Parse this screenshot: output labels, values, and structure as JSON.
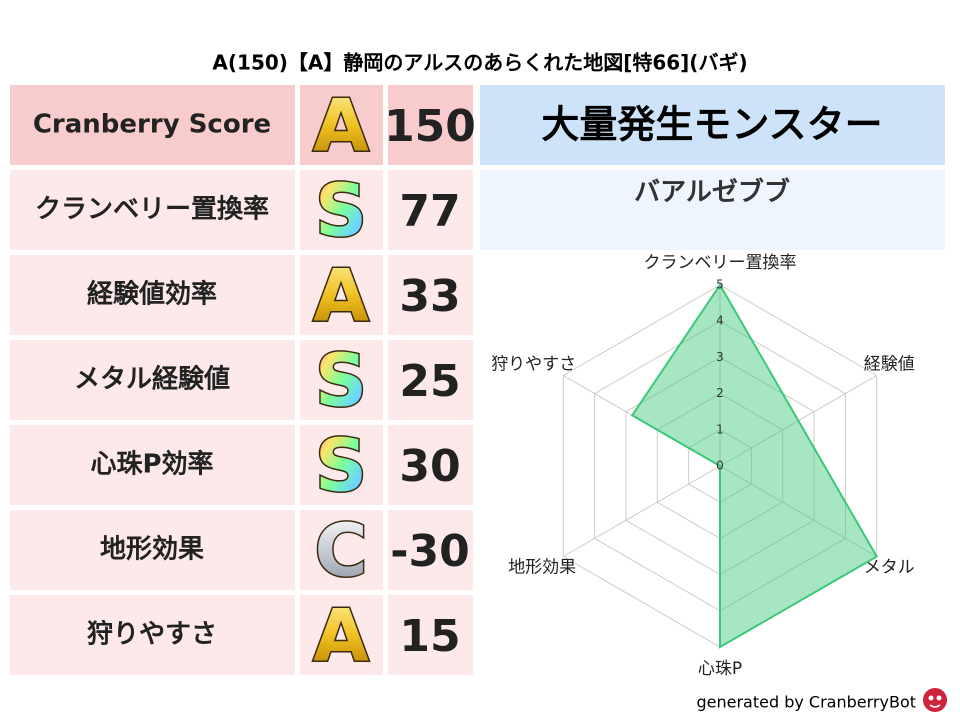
{
  "title": "A(150)【A】静岡のアルスのあらくれた地図[特66](バギ)",
  "table": {
    "rows": [
      [
        "Cranberry Score",
        "A",
        150
      ],
      [
        "クランベリー置換率",
        "S",
        77
      ],
      [
        "経験値効率",
        "A",
        33
      ],
      [
        "メタル経験値",
        "S",
        25
      ],
      [
        "心珠P効率",
        "S",
        30
      ],
      [
        "地形効果",
        "C",
        -30
      ],
      [
        "狩りやすさ",
        "A",
        15
      ]
    ]
  },
  "monster": {
    "header": "大量発生モンスター",
    "name": "バアルゼブブ"
  },
  "chart_data": {
    "type": "radar",
    "axes": [
      "クランベリー置換率",
      "経験値",
      "メタル",
      "心珠P",
      "地形効果",
      "狩りやすさ"
    ],
    "values": [
      5,
      2.5,
      5,
      5,
      0,
      2.8
    ],
    "color": "#3cc878",
    "rlim": [
      0,
      5
    ],
    "rticks": [
      0,
      1,
      2,
      3,
      4,
      5
    ],
    "grid": true
  },
  "footer": "generated by CranberryBot"
}
